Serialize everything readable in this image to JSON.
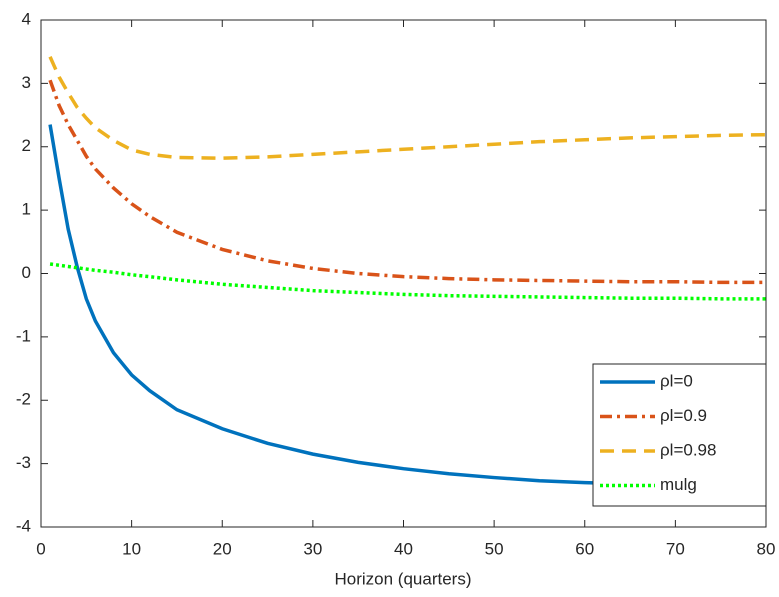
{
  "chart_data": {
    "type": "line",
    "x_label": "Horizon (quarters)",
    "x": [
      1,
      2,
      3,
      4,
      5,
      6,
      8,
      10,
      12,
      15,
      20,
      25,
      30,
      35,
      40,
      45,
      50,
      55,
      60,
      65,
      70,
      75,
      80
    ],
    "series": [
      {
        "name": "ρl=0",
        "color": "#0072bd",
        "style": "solid",
        "values": [
          2.35,
          1.5,
          0.7,
          0.1,
          -0.4,
          -0.75,
          -1.25,
          -1.6,
          -1.85,
          -2.15,
          -2.45,
          -2.68,
          -2.85,
          -2.98,
          -3.08,
          -3.16,
          -3.22,
          -3.27,
          -3.3,
          -3.32,
          -3.34,
          -3.35,
          -3.36
        ]
      },
      {
        "name": "ρl=0.9",
        "color": "#d95319",
        "style": "dashdot",
        "values": [
          3.05,
          2.65,
          2.35,
          2.1,
          1.85,
          1.65,
          1.35,
          1.1,
          0.9,
          0.65,
          0.38,
          0.2,
          0.08,
          0.0,
          -0.05,
          -0.08,
          -0.1,
          -0.11,
          -0.12,
          -0.13,
          -0.13,
          -0.14,
          -0.14
        ]
      },
      {
        "name": "ρl=0.98",
        "color": "#edb120",
        "style": "dashed",
        "values": [
          3.42,
          3.1,
          2.85,
          2.62,
          2.45,
          2.3,
          2.1,
          1.95,
          1.88,
          1.83,
          1.82,
          1.84,
          1.88,
          1.92,
          1.96,
          2.0,
          2.04,
          2.08,
          2.11,
          2.14,
          2.16,
          2.18,
          2.19
        ]
      },
      {
        "name": "mulg",
        "color": "#00ff00",
        "style": "dotted",
        "values": [
          0.15,
          0.13,
          0.11,
          0.09,
          0.07,
          0.05,
          0.02,
          -0.02,
          -0.05,
          -0.1,
          -0.17,
          -0.22,
          -0.27,
          -0.3,
          -0.33,
          -0.35,
          -0.36,
          -0.37,
          -0.38,
          -0.39,
          -0.39,
          -0.4,
          -0.4
        ]
      }
    ],
    "xlim": [
      0,
      80
    ],
    "xticks": [
      0,
      10,
      20,
      30,
      40,
      50,
      60,
      70,
      80
    ],
    "ylim": [
      -4,
      4
    ],
    "yticks": [
      -4,
      -3,
      -2,
      -1,
      0,
      1,
      2,
      3,
      4
    ],
    "legend": "lower right",
    "grid": false
  }
}
